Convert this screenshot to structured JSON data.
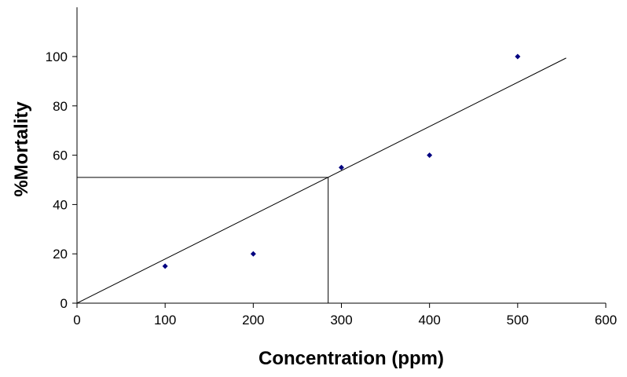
{
  "chart_data": {
    "type": "scatter",
    "x": [
      100,
      200,
      300,
      400,
      500
    ],
    "values": [
      15,
      20,
      55,
      60,
      100
    ],
    "color": "#000080",
    "xlabel": "Concentration (ppm)",
    "ylabel": "%Mortality",
    "xlim": [
      0,
      600
    ],
    "xticks": [
      0,
      100,
      200,
      300,
      400,
      500,
      600
    ],
    "ylim": [
      0,
      120
    ],
    "yticks": [
      0,
      20,
      40,
      60,
      80,
      100
    ],
    "grid": false,
    "trendline": {
      "x": [
        0,
        555
      ],
      "y": [
        0,
        99.4
      ]
    },
    "reference": {
      "x": 285,
      "y": 51
    }
  }
}
